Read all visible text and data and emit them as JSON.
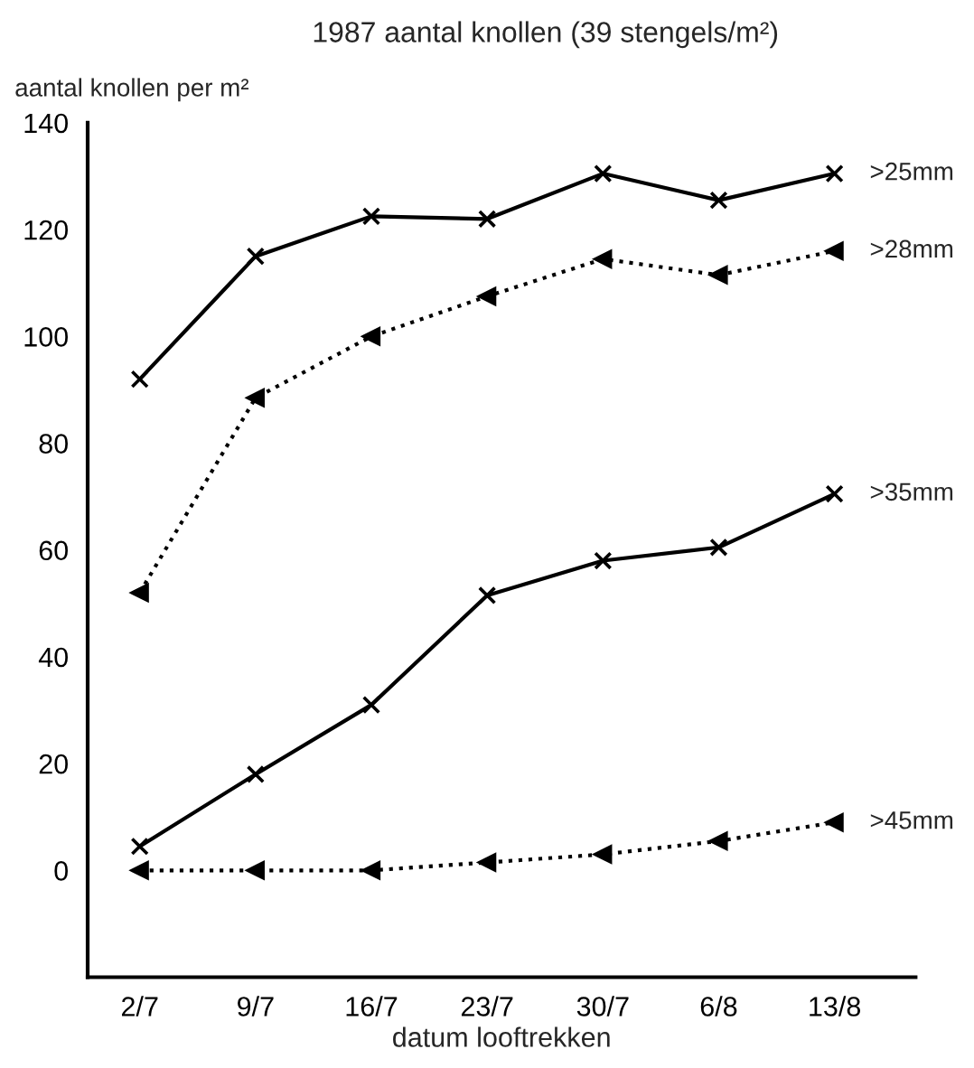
{
  "chart_data": {
    "type": "line",
    "title": "1987 aantal knollen (39 stengels/m²)",
    "ylabel": "aantal knollen per m²",
    "xlabel": "datum looftrekken",
    "categories": [
      "2/7",
      "9/7",
      "16/7",
      "23/7",
      "30/7",
      "6/8",
      "13/8"
    ],
    "ylim": [
      -20,
      140
    ],
    "yticks": [
      0,
      20,
      40,
      60,
      80,
      100,
      120,
      140
    ],
    "grid": false,
    "legend": false,
    "series": [
      {
        "name": ">25mm",
        "color": "#000000",
        "marker": "cross",
        "line_style": "solid",
        "values": [
          92,
          115,
          122.5,
          122,
          130.5,
          125.5,
          130.5
        ]
      },
      {
        "name": ">28mm",
        "color": "#000000",
        "marker": "triangle",
        "line_style": "dotted",
        "values": [
          52,
          88.5,
          100,
          107.5,
          114.5,
          111.5,
          116
        ]
      },
      {
        "name": ">35mm",
        "color": "#000000",
        "marker": "cross",
        "line_style": "solid",
        "values": [
          4.5,
          18,
          31,
          51.5,
          58,
          60.5,
          70.5
        ]
      },
      {
        "name": ">45mm",
        "color": "#000000",
        "marker": "triangle",
        "line_style": "dotted",
        "values": [
          0,
          0,
          0,
          1.5,
          3,
          5.5,
          9
        ]
      }
    ]
  }
}
